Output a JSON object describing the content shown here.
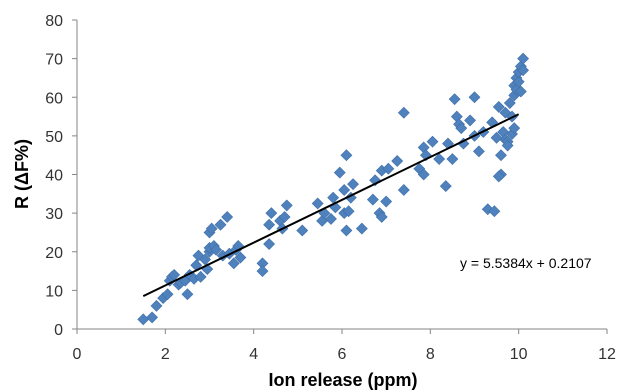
{
  "chart_data": {
    "type": "scatter",
    "xlabel": "Ion release (ppm)",
    "ylabel": "R (ΔF%)",
    "xlim": [
      0,
      12
    ],
    "ylim": [
      0,
      80
    ],
    "x_ticks": [
      "0",
      "2",
      "4",
      "6",
      "8",
      "10",
      "12"
    ],
    "y_ticks": [
      "0",
      "10",
      "20",
      "30",
      "40",
      "50",
      "60",
      "70",
      "80"
    ],
    "grid": false,
    "legend": "none",
    "marker": "diamond",
    "marker_color": "#4F81BD",
    "trendline": {
      "type": "linear",
      "slope": 5.5384,
      "intercept": 0.2107,
      "x_range": [
        1.5,
        10.0
      ],
      "color": "#000000",
      "equation_label": "y = 5.5384x + 0.2107"
    },
    "series": [
      {
        "points": [
          [
            1.5,
            2.5
          ],
          [
            1.7,
            3.0
          ],
          [
            1.8,
            6.0
          ],
          [
            1.95,
            8.0
          ],
          [
            2.05,
            9.0
          ],
          [
            2.1,
            12.5
          ],
          [
            2.15,
            13.5
          ],
          [
            2.2,
            14.0
          ],
          [
            2.3,
            11.5
          ],
          [
            2.35,
            12.0
          ],
          [
            2.45,
            12.5
          ],
          [
            2.5,
            9.0
          ],
          [
            2.55,
            14.0
          ],
          [
            2.65,
            13.0
          ],
          [
            2.7,
            16.5
          ],
          [
            2.75,
            19.0
          ],
          [
            2.8,
            13.5
          ],
          [
            2.9,
            18.0
          ],
          [
            2.95,
            15.5
          ],
          [
            3.0,
            20.0
          ],
          [
            3.0,
            21.0
          ],
          [
            3.0,
            25.0
          ],
          [
            3.05,
            26.0
          ],
          [
            3.1,
            21.5
          ],
          [
            3.15,
            20.5
          ],
          [
            3.25,
            27.0
          ],
          [
            3.3,
            19.0
          ],
          [
            3.4,
            29.0
          ],
          [
            3.45,
            19.5
          ],
          [
            3.55,
            17.0
          ],
          [
            3.6,
            20.5
          ],
          [
            3.65,
            21.5
          ],
          [
            3.7,
            18.5
          ],
          [
            4.2,
            17.0
          ],
          [
            4.2,
            15.0
          ],
          [
            4.35,
            22.0
          ],
          [
            4.35,
            27.0
          ],
          [
            4.4,
            30.0
          ],
          [
            4.6,
            28.0
          ],
          [
            4.65,
            26.0
          ],
          [
            4.7,
            29.0
          ],
          [
            4.75,
            32.0
          ],
          [
            5.1,
            25.5
          ],
          [
            5.45,
            32.5
          ],
          [
            5.55,
            28.0
          ],
          [
            5.6,
            30.0
          ],
          [
            5.75,
            28.5
          ],
          [
            5.8,
            34.0
          ],
          [
            5.85,
            31.5
          ],
          [
            5.95,
            40.5
          ],
          [
            6.05,
            36.0
          ],
          [
            6.05,
            30.0
          ],
          [
            6.1,
            25.5
          ],
          [
            6.1,
            45.0
          ],
          [
            6.15,
            30.5
          ],
          [
            6.2,
            34.0
          ],
          [
            6.25,
            37.5
          ],
          [
            6.45,
            26.0
          ],
          [
            6.7,
            33.5
          ],
          [
            6.75,
            38.5
          ],
          [
            6.85,
            30.0
          ],
          [
            6.9,
            29.0
          ],
          [
            6.9,
            41.0
          ],
          [
            7.0,
            33.0
          ],
          [
            7.05,
            41.5
          ],
          [
            7.25,
            43.5
          ],
          [
            7.4,
            56.0
          ],
          [
            7.4,
            36.0
          ],
          [
            7.75,
            41.5
          ],
          [
            7.85,
            47.0
          ],
          [
            7.85,
            40.0
          ],
          [
            7.9,
            45.0
          ],
          [
            8.05,
            48.5
          ],
          [
            8.2,
            44.0
          ],
          [
            8.35,
            37.0
          ],
          [
            8.4,
            48.0
          ],
          [
            8.5,
            44.0
          ],
          [
            8.55,
            59.5
          ],
          [
            8.6,
            55.0
          ],
          [
            8.65,
            53.0
          ],
          [
            8.7,
            52.0
          ],
          [
            8.75,
            48.0
          ],
          [
            8.9,
            54.0
          ],
          [
            9.0,
            60.0
          ],
          [
            9.0,
            50.0
          ],
          [
            9.1,
            46.0
          ],
          [
            9.2,
            51.0
          ],
          [
            9.3,
            31.0
          ],
          [
            9.4,
            53.5
          ],
          [
            9.45,
            30.5
          ],
          [
            9.5,
            49.5
          ],
          [
            9.55,
            57.5
          ],
          [
            9.6,
            45.0
          ],
          [
            9.6,
            40.0
          ],
          [
            9.65,
            51.0
          ],
          [
            9.7,
            49.0
          ],
          [
            9.7,
            56.0
          ],
          [
            9.75,
            48.5
          ],
          [
            9.8,
            58.5
          ],
          [
            9.85,
            55.0
          ],
          [
            9.85,
            50.5
          ],
          [
            9.9,
            60.5
          ],
          [
            9.9,
            63.0
          ],
          [
            9.95,
            65.0
          ],
          [
            9.95,
            62.0
          ],
          [
            10.0,
            64.0
          ],
          [
            10.0,
            66.5
          ],
          [
            10.05,
            68.0
          ],
          [
            10.05,
            61.5
          ],
          [
            10.1,
            70.0
          ],
          [
            10.1,
            67.0
          ],
          [
            9.9,
            52.0
          ],
          [
            9.55,
            39.5
          ],
          [
            9.75,
            47.5
          ]
        ]
      }
    ]
  }
}
